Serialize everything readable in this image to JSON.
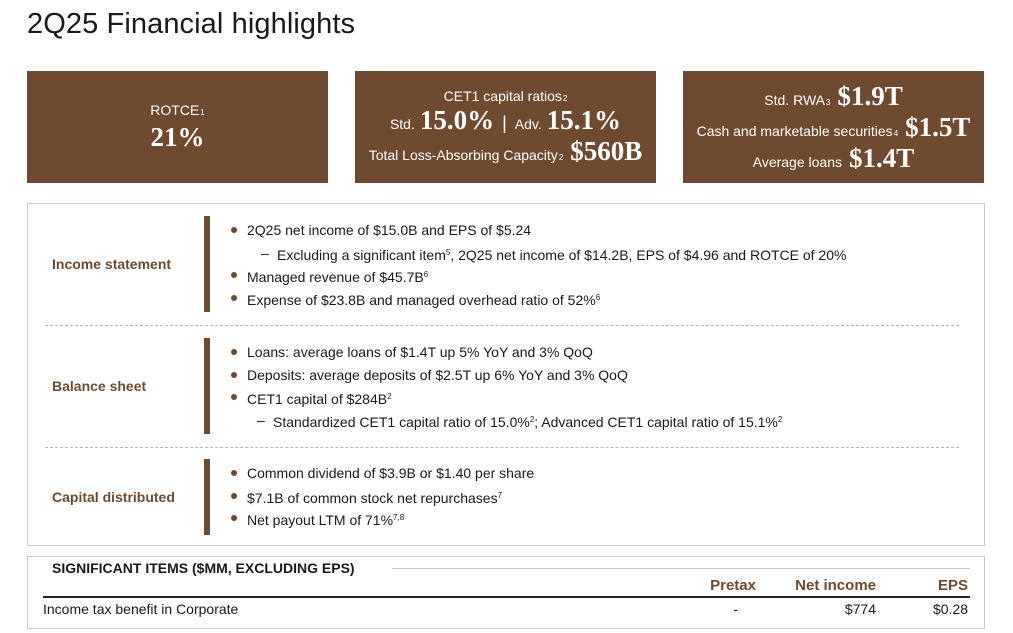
{
  "page": {
    "title": "2Q25 Financial highlights"
  },
  "kpis": {
    "rotce": {
      "label": "ROTCE",
      "note": "1",
      "value": "21%"
    },
    "cet1": {
      "label": "CET1 capital ratios",
      "note": "2",
      "std_label": "Std.",
      "std_value": "15.0%",
      "separator": "|",
      "adv_label": "Adv.",
      "adv_value": "15.1%",
      "tlac_label": "Total Loss-Absorbing Capacity",
      "tlac_note": "2",
      "tlac_value": "$560B"
    },
    "balance": {
      "rwa_label": "Std. RWA",
      "rwa_note": "3",
      "rwa_value": "$1.9T",
      "cash_label": "Cash and marketable securities",
      "cash_note": "4",
      "cash_value": "$1.5T",
      "loans_label": "Average loans",
      "loans_value": "$1.4T"
    }
  },
  "sections": {
    "income": {
      "label": "Income statement",
      "b1": "2Q25 net income of $15.0B and EPS of $5.24",
      "s1_dash": "–",
      "s1_a": "Excluding a significant item",
      "s1_note": "5",
      "s1_b": ", 2Q25 net income of $14.2B, EPS of $4.96 and ROTCE of 20%",
      "b2": "Managed revenue of $45.7B",
      "b2_note": "6",
      "b3": "Expense of $23.8B and managed overhead ratio of 52%",
      "b3_note": "6"
    },
    "balance": {
      "label": "Balance sheet",
      "b1": "Loans: average loans of $1.4T up 5% YoY and 3% QoQ",
      "b2": "Deposits: average deposits of $2.5T up 6% YoY and 3% QoQ",
      "b3": "CET1 capital of $284B",
      "b3_note": "2",
      "s1_dash": "–",
      "s1_a": "Standardized CET1 capital ratio of 15.0%",
      "s1_note1": "2",
      "s1_b": "; Advanced CET1 capital ratio of 15.1%",
      "s1_note2": "2"
    },
    "capital": {
      "label": "Capital distributed",
      "b1": "Common dividend of $3.9B or $1.40 per share",
      "b2": "$7.1B of common stock net repurchases",
      "b2_note": "7",
      "b3": "Net payout LTM of 71%",
      "b3_note": "7,8"
    }
  },
  "significant_items": {
    "title": "SIGNIFICANT ITEMS ($MM, EXCLUDING EPS)",
    "columns": [
      "Pretax",
      "Net income",
      "EPS"
    ],
    "rows": [
      {
        "label": "Income tax benefit in Corporate",
        "pretax": "-",
        "net_income": "$774",
        "eps": "$0.28"
      }
    ]
  },
  "colors": {
    "brand_brown": "#6e4a30",
    "text": "#1a1a1a",
    "border": "#c8c8c8"
  }
}
